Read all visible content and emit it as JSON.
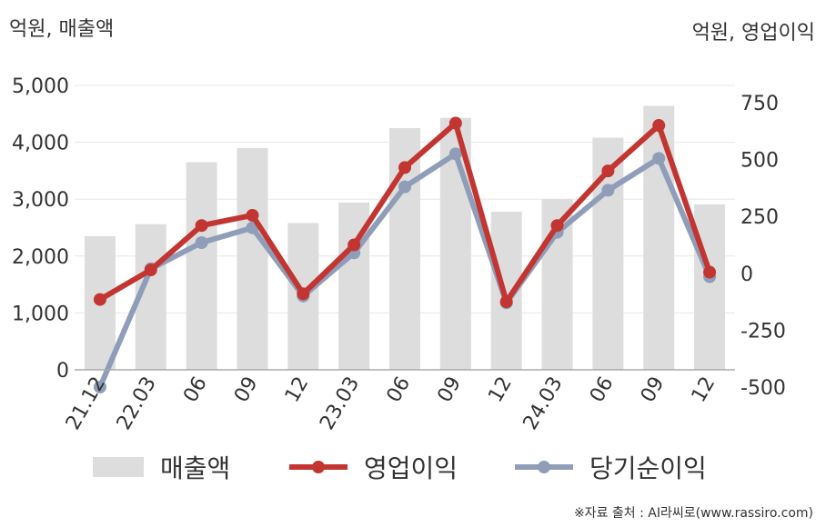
{
  "chart_data": {
    "type": "bar+line",
    "categories": [
      "21.12",
      "22.03",
      "06",
      "09",
      "12",
      "23.03",
      "06",
      "09",
      "12",
      "24.03",
      "06",
      "09",
      "12"
    ],
    "left_axis": {
      "unit": "억원, 매출액",
      "ylim": [
        0,
        5000
      ],
      "ticks": [
        "0",
        "1,000",
        "2,000",
        "3,000",
        "4,000",
        "5,000"
      ],
      "tick_values": [
        0,
        1000,
        2000,
        3000,
        4000,
        5000
      ]
    },
    "right_axis": {
      "unit": "억원, 영업이익",
      "ylim": [
        -500,
        750
      ],
      "ticks": [
        "-500",
        "-250",
        "0",
        "250",
        "500",
        "750"
      ],
      "tick_values": [
        -500,
        -250,
        0,
        250,
        500,
        750
      ]
    },
    "series": [
      {
        "name": "매출액",
        "type": "bar",
        "axis": "left",
        "color": "#dddddd",
        "values": [
          2350,
          2560,
          3650,
          3900,
          2580,
          2940,
          4250,
          4430,
          2780,
          3000,
          4080,
          4640,
          2910
        ]
      },
      {
        "name": "영업이익",
        "type": "line",
        "axis": "right",
        "color": "#c23531",
        "values": [
          -115,
          15,
          210,
          255,
          -90,
          125,
          465,
          660,
          -125,
          210,
          450,
          650,
          5
        ]
      },
      {
        "name": "당기순이익",
        "type": "line",
        "axis": "right",
        "color": "#8f9db8",
        "values": [
          -500,
          20,
          135,
          200,
          -100,
          90,
          380,
          525,
          -130,
          180,
          365,
          505,
          -15
        ]
      }
    ],
    "legend_position": "bottom",
    "grid": "horizontal"
  },
  "legend": {
    "bar_label": "매출액",
    "line1_label": "영업이익",
    "line2_label": "당기순이익"
  },
  "source": "※자료 출처 : AI라씨로(www.rassiro.com)"
}
